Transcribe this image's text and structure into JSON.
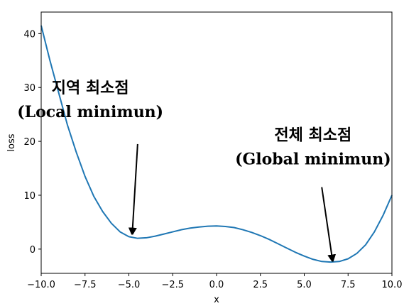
{
  "chart_data": {
    "type": "line",
    "title": "",
    "xlabel": "x",
    "ylabel": "loss",
    "xlim": [
      -10,
      10
    ],
    "ylim": [
      -4.5,
      44
    ],
    "grid": false,
    "legend": "none",
    "x_ticks": [
      -10.0,
      -7.5,
      -5.0,
      -2.5,
      0.0,
      2.5,
      5.0,
      7.5,
      10.0
    ],
    "x_tick_labels": [
      "−10.0",
      "−7.5",
      "−5.0",
      "−2.5",
      "0.0",
      "2.5",
      "5.0",
      "7.5",
      "10.0"
    ],
    "y_ticks": [
      0,
      10,
      20,
      30,
      40
    ],
    "y_tick_labels": [
      "0",
      "10",
      "20",
      "30",
      "40"
    ],
    "series": [
      {
        "color": "#1f77b4",
        "x": [
          -10,
          -9.5,
          -9,
          -8.5,
          -8,
          -7.5,
          -7,
          -6.5,
          -6,
          -5.5,
          -5,
          -4.5,
          -4,
          -3.5,
          -3,
          -2.5,
          -2,
          -1.5,
          -1,
          -0.5,
          0,
          0.5,
          1,
          1.5,
          2,
          2.5,
          3,
          3.5,
          4,
          4.5,
          5,
          5.5,
          6,
          6.5,
          7,
          7.5,
          8,
          8.5,
          9,
          9.5,
          10
        ],
        "y": [
          41.5,
          35.0,
          29.0,
          23.0,
          18.0,
          13.5,
          9.8,
          7.0,
          4.8,
          3.2,
          2.3,
          2.0,
          2.1,
          2.4,
          2.8,
          3.2,
          3.6,
          3.9,
          4.1,
          4.25,
          4.3,
          4.2,
          4.0,
          3.6,
          3.1,
          2.5,
          1.8,
          1.0,
          0.2,
          -0.6,
          -1.3,
          -1.9,
          -2.3,
          -2.4,
          -2.3,
          -1.8,
          -0.8,
          0.8,
          3.2,
          6.3,
          10.0
        ]
      }
    ],
    "annotations": [
      {
        "lines": [
          "지역 최소점",
          "(Local minimun)"
        ],
        "text_xy": [
          -7.2,
          29
        ],
        "arrow_from": [
          -4.5,
          19.5
        ],
        "arrow_to": [
          -4.8,
          3.2
        ]
      },
      {
        "lines": [
          "전체 최소점",
          "(Global minimun)"
        ],
        "text_xy": [
          5.5,
          20.2
        ],
        "arrow_from": [
          6.0,
          11.5
        ],
        "arrow_to": [
          6.6,
          -1.8
        ]
      }
    ]
  }
}
